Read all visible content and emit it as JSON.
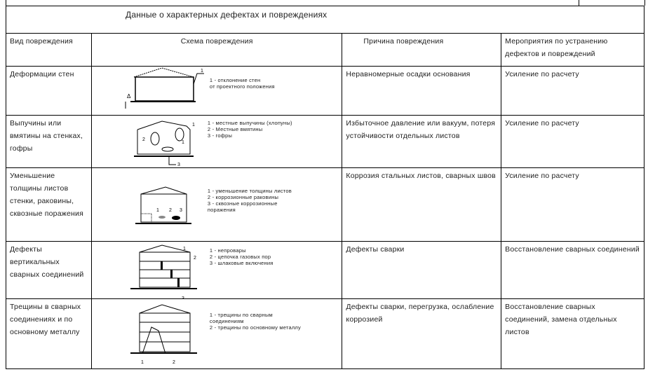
{
  "title": "Данные о характерных дефектах и повреждениях",
  "headers": [
    "Вид повреждения",
    "Схема повреждения",
    "Причина повреждения",
    "Мероприятия по устранению дефектов и повреждений"
  ],
  "rows": [
    {
      "type": "Деформации стен",
      "legend": [
        "1 - отклонение стен",
        "от проектного положения"
      ],
      "cause": "Неравномерные осадки основания",
      "action": "Усиление по расчету"
    },
    {
      "type": "Выпучины или вмятины на стенках, гофры",
      "legend": [
        "1 - местные выпучины (хлопуны)",
        "2 - Местные вмятины",
        "3 - гофры"
      ],
      "cause": "Избыточное давление или вакуум, потеря устойчивости отдельных листов",
      "action": "Усиление по расчету"
    },
    {
      "type": "Уменьшение толщины листов стенки, раковины, сквозные поражения",
      "legend": [
        "1 - уменьшение толщины листов",
        "2 - коррозионные раковины",
        "3 - сквозные коррозионные",
        "поражения"
      ],
      "cause": "Коррозия стальных листов, сварных швов",
      "action": "Усиление по расчету"
    },
    {
      "type": "Дефекты вертикальных сварных соединений",
      "legend": [
        "1 - непровары",
        "2 - цепочка газовых пор",
        "3 - шлаковые включения"
      ],
      "cause": "Дефекты сварки",
      "action": "Восстановление сварных соединений"
    },
    {
      "type": "Трещины в сварных соединениях и по основному металлу",
      "legend": [
        "1 - трещины по сварным",
        "соединениям",
        "2 - трещины по основному металлу"
      ],
      "cause": "Дефекты сварки, перегрузка, ослабление коррозией",
      "action": "Восстановление сварных соединений, замена отдельных листов"
    }
  ]
}
